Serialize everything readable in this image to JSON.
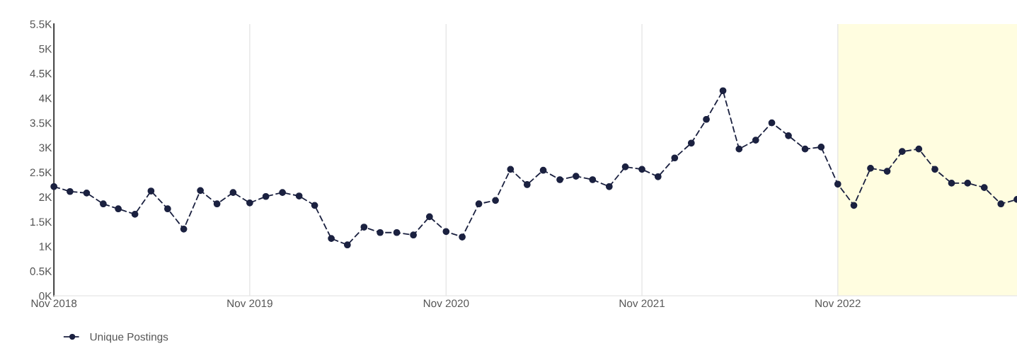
{
  "chart_data": {
    "type": "line",
    "x": [
      "2018-11",
      "2018-12",
      "2019-01",
      "2019-02",
      "2019-03",
      "2019-04",
      "2019-05",
      "2019-06",
      "2019-07",
      "2019-08",
      "2019-09",
      "2019-10",
      "2019-11",
      "2019-12",
      "2020-01",
      "2020-02",
      "2020-03",
      "2020-04",
      "2020-05",
      "2020-06",
      "2020-07",
      "2020-08",
      "2020-09",
      "2020-10",
      "2020-11",
      "2020-12",
      "2021-01",
      "2021-02",
      "2021-03",
      "2021-04",
      "2021-05",
      "2021-06",
      "2021-07",
      "2021-08",
      "2021-09",
      "2021-10",
      "2021-11",
      "2021-12",
      "2022-01",
      "2022-02",
      "2022-03",
      "2022-04",
      "2022-05",
      "2022-06",
      "2022-07",
      "2022-08",
      "2022-09",
      "2022-10",
      "2022-11",
      "2022-12",
      "2023-01",
      "2023-02",
      "2023-03",
      "2023-04",
      "2023-05",
      "2023-06",
      "2023-07",
      "2023-08",
      "2023-09",
      "2023-10"
    ],
    "series": [
      {
        "name": "Unique Postings",
        "color": "#1b2140",
        "values": [
          2210,
          2110,
          2080,
          1860,
          1760,
          1650,
          2120,
          1760,
          1350,
          2130,
          1860,
          2090,
          1880,
          2010,
          2090,
          2020,
          1830,
          1160,
          1030,
          1390,
          1280,
          1280,
          1230,
          1600,
          1300,
          1190,
          1860,
          1930,
          2560,
          2250,
          2540,
          2350,
          2420,
          2350,
          2210,
          2610,
          2560,
          2410,
          2790,
          3090,
          3570,
          4150,
          2970,
          3150,
          3500,
          3240,
          2970,
          3010,
          2260,
          1830,
          2580,
          2520,
          2920,
          2970,
          2560,
          2280,
          2280,
          2190,
          1860,
          1950
        ]
      }
    ],
    "xlim": [
      "2018-11",
      "2023-10"
    ],
    "xticks": [
      {
        "value": "2018-11",
        "label": "Nov 2018"
      },
      {
        "value": "2019-11",
        "label": "Nov 2019"
      },
      {
        "value": "2020-11",
        "label": "Nov 2020"
      },
      {
        "value": "2021-11",
        "label": "Nov 2021"
      },
      {
        "value": "2022-11",
        "label": "Nov 2022"
      }
    ],
    "ylim": [
      0,
      5500
    ],
    "yticks": [
      {
        "value": 0,
        "label": "0K"
      },
      {
        "value": 500,
        "label": "0.5K"
      },
      {
        "value": 1000,
        "label": "1K"
      },
      {
        "value": 1500,
        "label": "1.5K"
      },
      {
        "value": 2000,
        "label": "2K"
      },
      {
        "value": 2500,
        "label": "2.5K"
      },
      {
        "value": 3000,
        "label": "3K"
      },
      {
        "value": 3500,
        "label": "3.5K"
      },
      {
        "value": 4000,
        "label": "4K"
      },
      {
        "value": 4500,
        "label": "4.5K"
      },
      {
        "value": 5000,
        "label": "5K"
      },
      {
        "value": 5500,
        "label": "5.5K"
      }
    ],
    "bands": [
      {
        "axis": "x",
        "from": "2022-11",
        "to": "2023-10",
        "color": "#fffde0"
      }
    ],
    "grid": "x",
    "legend": "bottom left",
    "marker": "circle",
    "line_style": "dashed"
  }
}
